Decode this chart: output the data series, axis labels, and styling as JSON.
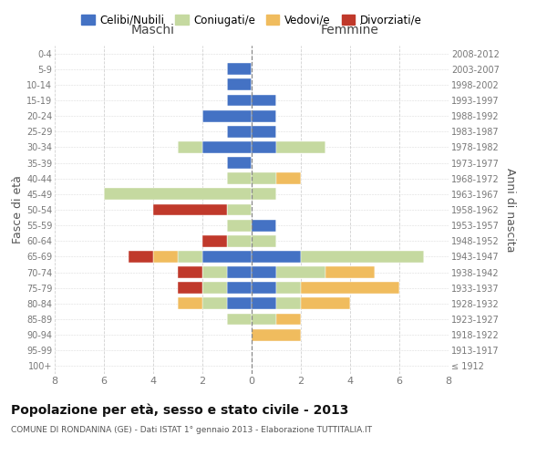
{
  "age_groups": [
    "100+",
    "95-99",
    "90-94",
    "85-89",
    "80-84",
    "75-79",
    "70-74",
    "65-69",
    "60-64",
    "55-59",
    "50-54",
    "45-49",
    "40-44",
    "35-39",
    "30-34",
    "25-29",
    "20-24",
    "15-19",
    "10-14",
    "5-9",
    "0-4"
  ],
  "birth_years": [
    "≤ 1912",
    "1913-1917",
    "1918-1922",
    "1923-1927",
    "1928-1932",
    "1933-1937",
    "1938-1942",
    "1943-1947",
    "1948-1952",
    "1953-1957",
    "1958-1962",
    "1963-1967",
    "1968-1972",
    "1973-1977",
    "1978-1982",
    "1983-1987",
    "1988-1992",
    "1993-1997",
    "1998-2002",
    "2003-2007",
    "2008-2012"
  ],
  "maschi": {
    "celibi": [
      0,
      0,
      0,
      0,
      1,
      1,
      1,
      2,
      0,
      0,
      0,
      0,
      0,
      1,
      2,
      1,
      2,
      1,
      1,
      1,
      0
    ],
    "coniugati": [
      0,
      0,
      0,
      1,
      1,
      1,
      1,
      1,
      1,
      1,
      1,
      6,
      1,
      0,
      1,
      0,
      0,
      0,
      0,
      0,
      0
    ],
    "vedovi": [
      0,
      0,
      0,
      0,
      1,
      0,
      0,
      1,
      0,
      0,
      0,
      0,
      0,
      0,
      0,
      0,
      0,
      0,
      0,
      0,
      0
    ],
    "divorziati": [
      0,
      0,
      0,
      0,
      0,
      1,
      1,
      1,
      1,
      0,
      3,
      0,
      0,
      0,
      0,
      0,
      0,
      0,
      0,
      0,
      0
    ]
  },
  "femmine": {
    "nubili": [
      0,
      0,
      0,
      0,
      1,
      1,
      1,
      2,
      0,
      1,
      0,
      0,
      0,
      0,
      1,
      1,
      1,
      1,
      0,
      0,
      0
    ],
    "coniugate": [
      0,
      0,
      0,
      1,
      1,
      1,
      2,
      5,
      1,
      0,
      0,
      1,
      1,
      0,
      2,
      0,
      0,
      0,
      0,
      0,
      0
    ],
    "vedove": [
      0,
      0,
      2,
      1,
      2,
      4,
      2,
      0,
      0,
      0,
      0,
      0,
      1,
      0,
      0,
      0,
      0,
      0,
      0,
      0,
      0
    ],
    "divorziate": [
      0,
      0,
      0,
      0,
      0,
      0,
      0,
      0,
      0,
      0,
      0,
      0,
      0,
      0,
      0,
      0,
      0,
      0,
      0,
      0,
      0
    ]
  },
  "colors": {
    "celibi_nubili": "#4472c4",
    "coniugati": "#c5d9a0",
    "vedovi": "#f0bc5e",
    "divorziati": "#c0392b"
  },
  "title": "Popolazione per età, sesso e stato civile - 2013",
  "subtitle": "COMUNE DI RONDANINA (GE) - Dati ISTAT 1° gennaio 2013 - Elaborazione TUTTITALIA.IT",
  "xlabel_left": "Maschi",
  "xlabel_right": "Femmine",
  "ylabel_left": "Fasce di età",
  "ylabel_right": "Anni di nascita",
  "xlim": 8,
  "legend_labels": [
    "Celibi/Nubili",
    "Coniugati/e",
    "Vedovi/e",
    "Divorziati/e"
  ],
  "bg_color": "#ffffff",
  "grid_color": "#cccccc"
}
